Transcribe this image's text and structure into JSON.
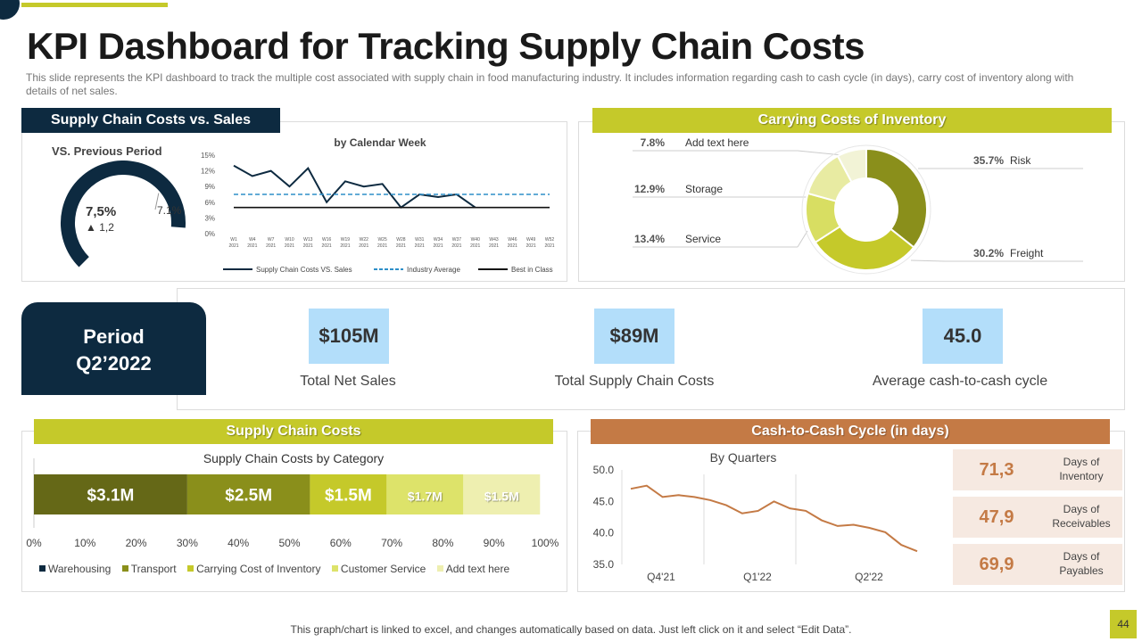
{
  "title": "KPI Dashboard for Tracking Supply Chain Costs",
  "subtitle": "This slide represents  the KPI dashboard to track the multiple cost associated with supply chain in food  manufacturing industry. It includes information  regarding cash to cash cycle (in days), carry cost of inventory  along with details of net sales.",
  "colors": {
    "navy": "#0d2a40",
    "lime": "#c5c92a",
    "brown": "#c47a45",
    "kpi_bg": "#b3defa"
  },
  "sc_vs_sales": {
    "header": "Supply Chain Costs vs. Sales",
    "gauge_title": "VS. Previous Period",
    "gauge_value": "7,5%",
    "gauge_delta": "▲ 1,2",
    "gauge_marker": "7.1%",
    "gauge_fill_fraction": 0.85
  },
  "carrying": {
    "header": "Carrying Costs of Inventory",
    "labels": [
      {
        "pct": "7.8%",
        "name": "Add text here"
      },
      {
        "pct": "12.9%",
        "name": "Storage"
      },
      {
        "pct": "13.4%",
        "name": "Service"
      },
      {
        "pct": "35.7%",
        "name": "Risk"
      },
      {
        "pct": "30.2%",
        "name": "Freight"
      }
    ]
  },
  "period": {
    "line1": "Period",
    "line2": "Q2’2022"
  },
  "kpis": [
    {
      "value": "$105M",
      "label": "Total Net Sales"
    },
    {
      "value": "$89M",
      "label": "Total Supply Chain Costs"
    },
    {
      "value": "45.0",
      "label": "Average cash-to-cash cycle"
    }
  ],
  "sc_costs": {
    "header": "Supply Chain Costs",
    "chart_title": "Supply Chain Costs by Category"
  },
  "c2c": {
    "header": "Cash-to-Cash Cycle (in days)",
    "chart_title": "By Quarters",
    "days": [
      {
        "value": "71,3",
        "label1": "Days of",
        "label2": "Inventory"
      },
      {
        "value": "47,9",
        "label1": "Days of",
        "label2": "Receivables"
      },
      {
        "value": "69,9",
        "label1": "Days of",
        "label2": "Payables"
      }
    ]
  },
  "footer": "This graph/chart is linked to excel, and changes automatically based on data. Just left click on it and select “Edit Data”.",
  "page_number": "44",
  "chart_data": [
    {
      "id": "weekly-line",
      "type": "line",
      "title": "by Calendar Week",
      "categories": [
        "W1 2021",
        "W4 2021",
        "W7 2021",
        "W10 2021",
        "W13 2021",
        "W16 2021",
        "W19 2021",
        "W22 2021",
        "W25 2021",
        "W28 2021",
        "W31 2021",
        "W34 2021",
        "W37 2021",
        "W40 2021",
        "W43 2021",
        "W46 2021",
        "W49 2021",
        "W52 2021"
      ],
      "series": [
        {
          "name": "Supply Chain Costs VS. Sales",
          "style": "solid",
          "color": "#0d2a40",
          "values": [
            13,
            11,
            12,
            9,
            12.5,
            6,
            10,
            9,
            9.5,
            5,
            7.5,
            7,
            7.5,
            5,
            null,
            null,
            null,
            null
          ]
        },
        {
          "name": "Industry Average",
          "style": "dashed",
          "color": "#2e8fc9",
          "values": [
            7.5,
            7.5,
            7.5,
            7.5,
            7.5,
            7.5,
            7.5,
            7.5,
            7.5,
            7.5,
            7.5,
            7.5,
            7.5,
            7.5,
            7.5,
            7.5,
            7.5,
            7.5
          ]
        },
        {
          "name": "Best in Class",
          "style": "solid",
          "color": "#111111",
          "values": [
            5,
            5,
            5,
            5,
            5,
            5,
            5,
            5,
            5,
            5,
            5,
            5,
            5,
            5,
            5,
            5,
            5,
            5
          ]
        }
      ],
      "yticks": [
        "0%",
        "3%",
        "6%",
        "9%",
        "12%",
        "15%"
      ],
      "ylim": [
        0,
        15
      ]
    },
    {
      "id": "carrying-donut",
      "type": "pie",
      "title": "Carrying Costs of Inventory",
      "labels": [
        "Risk",
        "Freight",
        "Service",
        "Storage",
        "Add text here"
      ],
      "values": [
        35.7,
        30.2,
        13.4,
        12.9,
        7.8
      ],
      "colors": [
        "#8a8f1b",
        "#c5c92a",
        "#d8de62",
        "#e8eba2",
        "#f2f3d6"
      ]
    },
    {
      "id": "category-bar",
      "type": "bar",
      "title": "Supply Chain Costs by Category",
      "orientation": "stacked-horizontal-percent",
      "categories": [
        "Warehousing",
        "Transport",
        "Carrying Cost of Inventory",
        "Customer Service",
        "Add text here"
      ],
      "values": [
        30,
        24,
        15,
        15,
        15
      ],
      "labels": [
        "$3.1M",
        "$2.5M",
        "$1.5M",
        "$1.7M",
        "$1.5M"
      ],
      "colors": [
        "#656817",
        "#8a8f1b",
        "#c5c92a",
        "#dde36a",
        "#eeefb0"
      ],
      "legend_colors": [
        "#0d2a40",
        "#8a8f1b",
        "#c5c92a",
        "#dde36a",
        "#eeefb0"
      ],
      "xticks": [
        "0%",
        "10%",
        "20%",
        "30%",
        "40%",
        "50%",
        "60%",
        "70%",
        "80%",
        "90%",
        "100%"
      ],
      "xlim": [
        0,
        100
      ]
    },
    {
      "id": "quarters-line",
      "type": "line",
      "title": "By Quarters",
      "values": [
        47,
        47.5,
        45.7,
        46,
        45.7,
        45.2,
        44.4,
        43.1,
        43.5,
        45,
        43.9,
        43.5,
        42,
        41.1,
        41.3,
        40.8,
        40.1,
        38.1,
        37.1
      ],
      "xlabels": [
        "Q4'21",
        "Q1'22",
        "Q2'22"
      ],
      "yticks": [
        "35.0",
        "40.0",
        "45.0",
        "50.0"
      ],
      "ylim": [
        35,
        50
      ],
      "color": "#c47a45"
    }
  ]
}
